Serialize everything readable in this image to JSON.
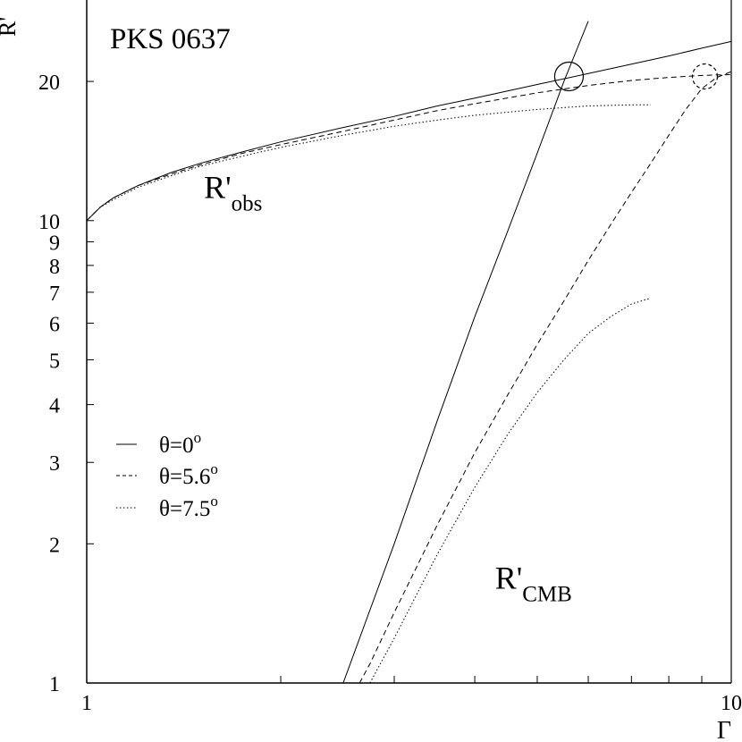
{
  "chart_data": {
    "type": "line",
    "title": "PKS 0637",
    "xlabel": "Γ",
    "ylabel": "R'",
    "xscale": "log",
    "yscale": "log",
    "xlim": [
      1,
      10
    ],
    "ylim": [
      1,
      30
    ],
    "x_ticks": [
      {
        "value": 1,
        "label": "1"
      },
      {
        "value": 2,
        "label": ""
      },
      {
        "value": 3,
        "label": ""
      },
      {
        "value": 4,
        "label": ""
      },
      {
        "value": 5,
        "label": ""
      },
      {
        "value": 6,
        "label": ""
      },
      {
        "value": 7,
        "label": ""
      },
      {
        "value": 8,
        "label": ""
      },
      {
        "value": 9,
        "label": ""
      },
      {
        "value": 10,
        "label": "10"
      }
    ],
    "y_ticks": [
      {
        "value": 1,
        "label": "1"
      },
      {
        "value": 2,
        "label": "2"
      },
      {
        "value": 3,
        "label": "3"
      },
      {
        "value": 4,
        "label": "4"
      },
      {
        "value": 5,
        "label": "5"
      },
      {
        "value": 6,
        "label": "6"
      },
      {
        "value": 7,
        "label": "7"
      },
      {
        "value": 8,
        "label": "8"
      },
      {
        "value": 9,
        "label": "9"
      },
      {
        "value": 10,
        "label": "10"
      },
      {
        "value": 20,
        "label": "20"
      }
    ],
    "legend": {
      "placement": "center-left",
      "entries": [
        {
          "label": "θ=0",
          "sup": "o",
          "style": "solid"
        },
        {
          "label": "θ=5.6",
          "sup": "o",
          "style": "dashed"
        },
        {
          "label": "θ=7.5",
          "sup": "o",
          "style": "dotted"
        }
      ]
    },
    "annotations": [
      {
        "text": "R'",
        "sub": "obs",
        "x": 1.52,
        "y": 11.2
      },
      {
        "text": "R'",
        "sub": "CMB",
        "x": 4.3,
        "y": 1.6
      }
    ],
    "series": [
      {
        "group": "obs",
        "style": "solid",
        "x": [
          1.0,
          1.05,
          1.1,
          1.2,
          1.35,
          1.5,
          1.75,
          2.0,
          2.5,
          3.0,
          3.5,
          4.0,
          5.0,
          6.0,
          7.0,
          8.0,
          9.0,
          10.0
        ],
        "y": [
          10.0,
          10.7,
          11.2,
          11.9,
          12.7,
          13.3,
          14.1,
          14.8,
          15.9,
          16.8,
          17.7,
          18.4,
          19.7,
          20.8,
          21.8,
          22.7,
          23.6,
          24.4
        ]
      },
      {
        "group": "obs",
        "style": "dashed",
        "x": [
          1.0,
          1.05,
          1.1,
          1.2,
          1.35,
          1.5,
          1.75,
          2.0,
          2.5,
          3.0,
          3.5,
          4.0,
          5.0,
          6.0,
          7.0,
          8.0,
          9.0,
          10.0
        ],
        "y": [
          10.0,
          10.7,
          11.2,
          11.9,
          12.6,
          13.2,
          14.0,
          14.6,
          15.6,
          16.5,
          17.3,
          17.9,
          18.9,
          19.6,
          20.1,
          20.4,
          20.6,
          20.7
        ]
      },
      {
        "group": "obs",
        "style": "dotted",
        "x": [
          1.0,
          1.05,
          1.1,
          1.2,
          1.35,
          1.5,
          1.75,
          2.0,
          2.5,
          3.0,
          3.5,
          4.0,
          5.0,
          6.0,
          7.0,
          7.5
        ],
        "y": [
          10.0,
          10.7,
          11.1,
          11.8,
          12.5,
          13.1,
          13.8,
          14.4,
          15.3,
          16.0,
          16.5,
          16.9,
          17.4,
          17.7,
          17.8,
          17.8
        ]
      },
      {
        "group": "CMB",
        "style": "solid",
        "x": [
          2.5,
          3.0,
          3.5,
          4.0,
          4.5,
          5.0,
          5.5,
          6.0
        ],
        "y": [
          1.0,
          2.0,
          3.7,
          6.2,
          9.5,
          14.0,
          20.0,
          27.0
        ]
      },
      {
        "group": "CMB",
        "style": "dashed",
        "x": [
          2.65,
          2.75,
          3.0,
          3.5,
          4.0,
          4.5,
          5.0,
          5.5,
          6.0,
          6.5,
          7.0,
          7.5,
          8.0,
          8.5,
          9.0,
          9.5,
          10.0
        ],
        "y": [
          1.0,
          1.1,
          1.42,
          2.2,
          3.15,
          4.2,
          5.4,
          6.7,
          8.2,
          9.8,
          11.5,
          13.3,
          15.3,
          17.4,
          19.3,
          20.4,
          21.0
        ]
      },
      {
        "group": "CMB",
        "style": "dotted",
        "x": [
          2.75,
          3.0,
          3.5,
          4.0,
          4.5,
          5.0,
          5.5,
          6.0,
          6.5,
          7.0,
          7.5
        ],
        "y": [
          1.0,
          1.25,
          1.9,
          2.65,
          3.45,
          4.25,
          5.0,
          5.7,
          6.2,
          6.6,
          6.8
        ]
      }
    ],
    "markers": [
      {
        "shape": "circle",
        "style": "solid",
        "x": 5.6,
        "y": 20.5
      },
      {
        "shape": "circle",
        "style": "dashed",
        "x": 9.1,
        "y": 20.5
      }
    ],
    "grid": false
  }
}
